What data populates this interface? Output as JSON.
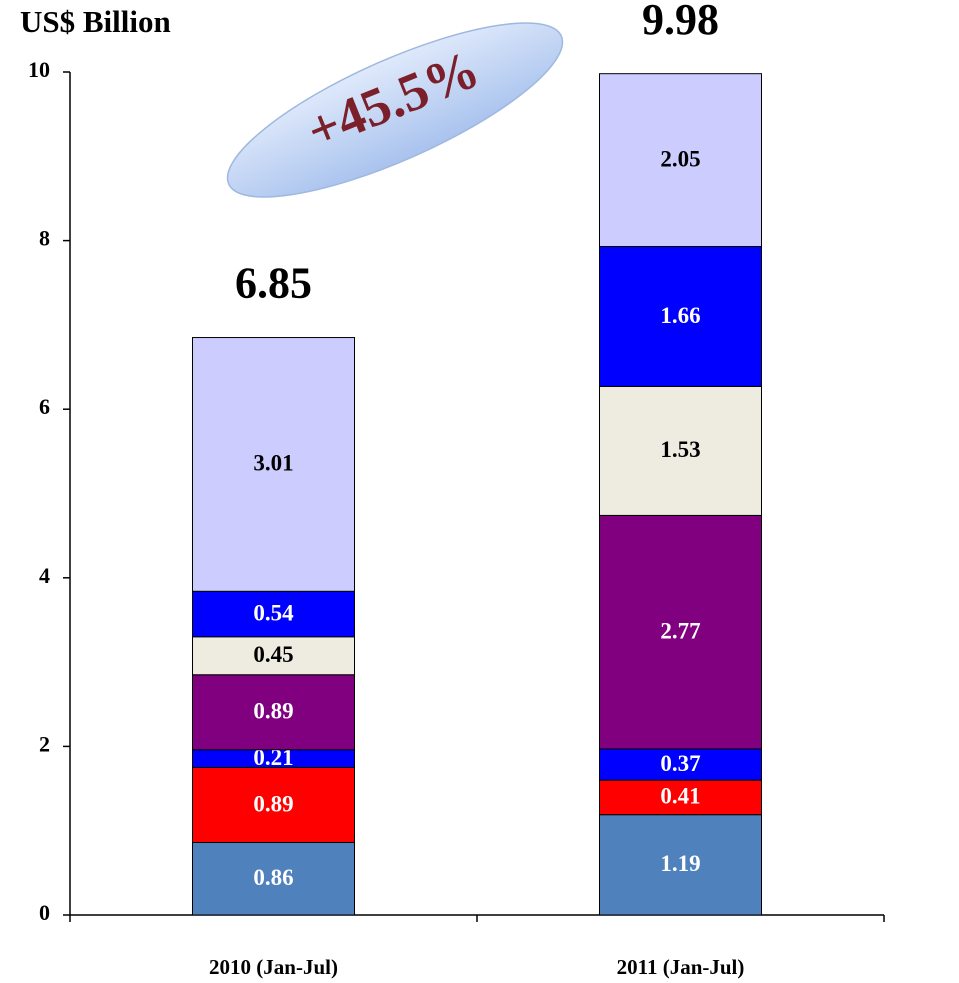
{
  "chart_data": {
    "type": "stacked_bar",
    "title": "US$ Billion",
    "annotation": "+45.5%",
    "categories": [
      "2010 (Jan-Jul)",
      "2011 (Jan-Jul)"
    ],
    "totals": [
      6.85,
      9.98
    ],
    "series": [
      {
        "color": "#4f81bd",
        "label_color": "#ffffff",
        "values": [
          0.86,
          1.19
        ]
      },
      {
        "color": "#ff0000",
        "label_color": "#ffffff",
        "values": [
          0.89,
          0.41
        ]
      },
      {
        "color": "#0000ff",
        "label_color": "#ffffff",
        "values": [
          0.21,
          0.37
        ]
      },
      {
        "color": "#800080",
        "label_color": "#ffffff",
        "values": [
          0.89,
          2.77
        ]
      },
      {
        "color": "#eeece1",
        "label_color": "#000000",
        "values": [
          0.45,
          1.53
        ]
      },
      {
        "color": "#0000ff",
        "label_color": "#ffffff",
        "values": [
          0.54,
          1.66
        ]
      },
      {
        "color": "#ccccff",
        "label_color": "#000000",
        "values": [
          3.01,
          2.05
        ]
      }
    ],
    "ylim": [
      0,
      10
    ],
    "yticks": [
      0,
      2,
      4,
      6,
      8,
      10
    ],
    "grid": false
  }
}
